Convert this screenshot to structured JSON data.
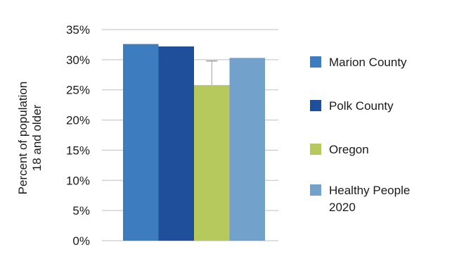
{
  "chart_data": {
    "type": "bar",
    "title": "",
    "xlabel": "",
    "ylabel": "Percent of population 18 and older",
    "ylabel_lines": [
      "Percent of population",
      "18 and older"
    ],
    "ylim": [
      0,
      35
    ],
    "y_ticks": [
      0,
      5,
      10,
      15,
      20,
      25,
      30,
      35
    ],
    "y_tick_labels": [
      "0%",
      "5%",
      "10%",
      "15%",
      "20%",
      "25%",
      "30%",
      "35%"
    ],
    "grid": true,
    "legend_position": "right",
    "series": [
      {
        "name": "Marion County",
        "legend_lines": [
          "Marion County"
        ],
        "value": 32.6,
        "color": "#3d7dbf"
      },
      {
        "name": "Polk County",
        "legend_lines": [
          "Polk County"
        ],
        "value": 32.2,
        "color": "#1f4e9a"
      },
      {
        "name": "Oregon",
        "legend_lines": [
          "Oregon"
        ],
        "value": 25.8,
        "color": "#b5c95c"
      },
      {
        "name": "Healthy People 2020",
        "legend_lines": [
          "Healthy People",
          "2020"
        ],
        "value": 30.3,
        "color": "#72a2cb"
      }
    ],
    "error_bar": {
      "series": "Oregon",
      "upper": 29.8
    },
    "colors": {
      "grid": "#bfbfbf",
      "axis_text": "#1a1a1a",
      "background": "#ffffff"
    }
  }
}
